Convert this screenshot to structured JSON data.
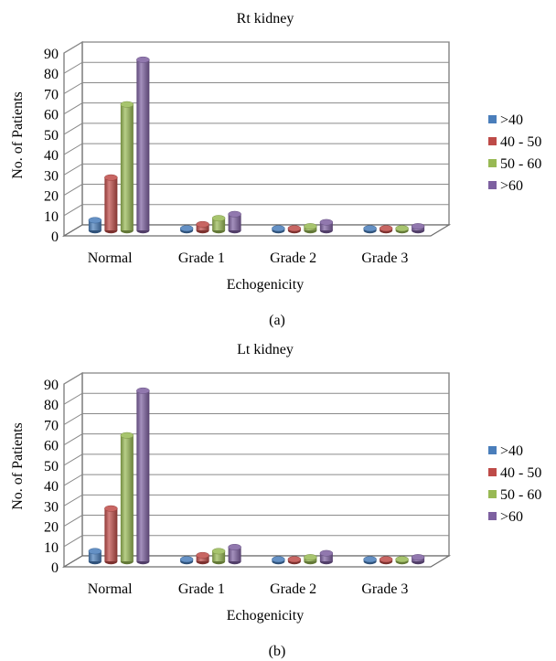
{
  "chart_data": [
    {
      "type": "bar",
      "title": "Rt kidney",
      "xlabel": "Echogenicity",
      "ylabel": "No. of Patients",
      "caption": "(a)",
      "categories": [
        "Normal",
        "Grade 1",
        "Grade 2",
        "Grade 3"
      ],
      "yticks": [
        "0",
        "10",
        "20",
        "30",
        "40",
        "50",
        "60",
        "70",
        "80",
        "90"
      ],
      "ylim": [
        0,
        90
      ],
      "series": [
        {
          "name": ">40",
          "color": "#4a7ebb",
          "values": [
            5,
            1,
            0,
            0
          ]
        },
        {
          "name": "40 - 50",
          "color": "#be4b48",
          "values": [
            26,
            3,
            0,
            0
          ]
        },
        {
          "name": "50 - 60",
          "color": "#98b954",
          "values": [
            62,
            6,
            2,
            1
          ]
        },
        {
          "name": ">60",
          "color": "#7d60a0",
          "values": [
            84,
            8,
            4,
            2
          ]
        }
      ],
      "legend": "right",
      "grid": true,
      "style": "3d-cylinder"
    },
    {
      "type": "bar",
      "title": "Lt kidney",
      "xlabel": "Echogenicity",
      "ylabel": "No. of Patients",
      "caption": "(b)",
      "categories": [
        "Normal",
        "Grade 1",
        "Grade 2",
        "Grade 3"
      ],
      "yticks": [
        "0",
        "10",
        "20",
        "30",
        "40",
        "50",
        "60",
        "70",
        "80",
        "90"
      ],
      "ylim": [
        0,
        90
      ],
      "series": [
        {
          "name": ">40",
          "color": "#4a7ebb",
          "values": [
            5,
            1,
            0,
            0
          ]
        },
        {
          "name": "40 - 50",
          "color": "#be4b48",
          "values": [
            26,
            3,
            0,
            0
          ]
        },
        {
          "name": "50 - 60",
          "color": "#98b954",
          "values": [
            62,
            5,
            2,
            1
          ]
        },
        {
          "name": ">60",
          "color": "#7d60a0",
          "values": [
            84,
            7,
            4,
            2
          ]
        }
      ],
      "legend": "right",
      "grid": true,
      "style": "3d-cylinder"
    }
  ]
}
